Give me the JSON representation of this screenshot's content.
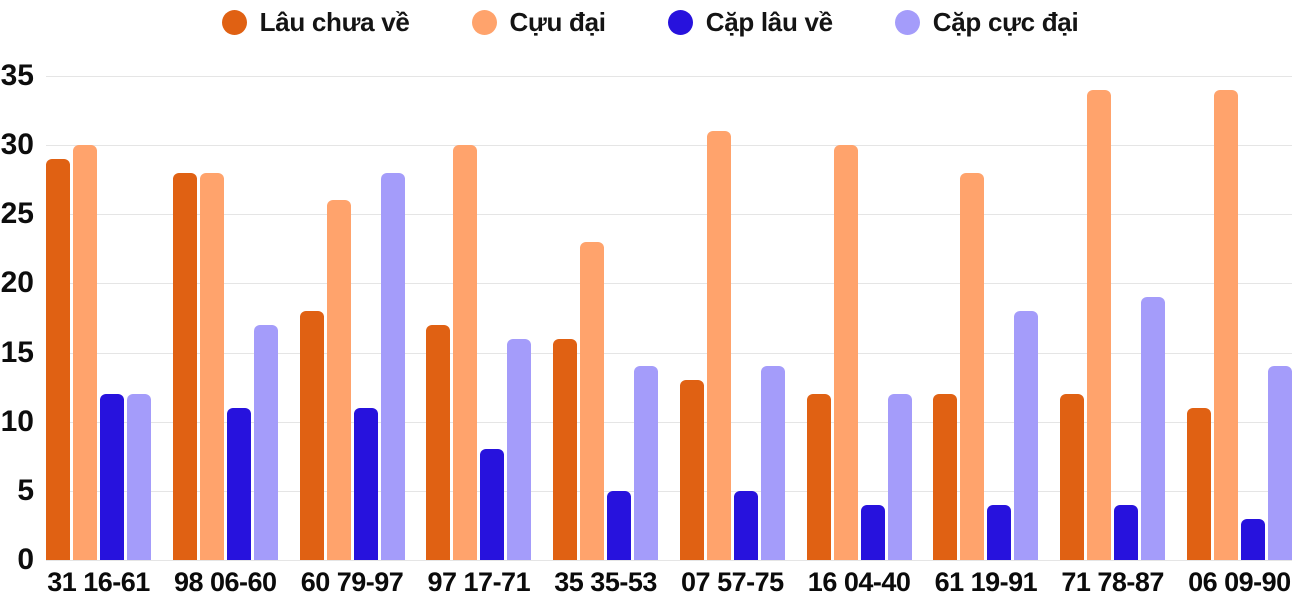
{
  "chart_data": {
    "type": "bar",
    "title": "",
    "categories": [
      "31 16-61",
      "98 06-60",
      "60 79-97",
      "97 17-71",
      "35 35-53",
      "07 57-75",
      "16 04-40",
      "61 19-91",
      "71 78-87",
      "06 09-90"
    ],
    "series": [
      {
        "name": "Lâu chưa về",
        "color": "#E06113",
        "values": [
          29,
          28,
          18,
          17,
          16,
          13,
          12,
          12,
          12,
          11
        ]
      },
      {
        "name": "Cựu đại",
        "color": "#FFA36C",
        "values": [
          30,
          28,
          26,
          30,
          23,
          31,
          30,
          28,
          34,
          34
        ]
      },
      {
        "name": "Cặp lâu về",
        "color": "#2712DD",
        "values": [
          12,
          11,
          11,
          8,
          5,
          5,
          4,
          4,
          4,
          3
        ]
      },
      {
        "name": "Cặp cực đại",
        "color": "#A49CFA",
        "values": [
          12,
          17,
          28,
          16,
          14,
          14,
          12,
          18,
          19,
          14
        ]
      }
    ],
    "ylim": [
      0,
      35
    ],
    "yticks": [
      0,
      5,
      10,
      15,
      20,
      25,
      30,
      35
    ],
    "grid": true,
    "legend_position": "top"
  },
  "colors": {
    "background": "#FFFFFF",
    "gridline": "#E5E5E5",
    "axis_text": "#0D0D0D",
    "legend_text": "#141414"
  }
}
